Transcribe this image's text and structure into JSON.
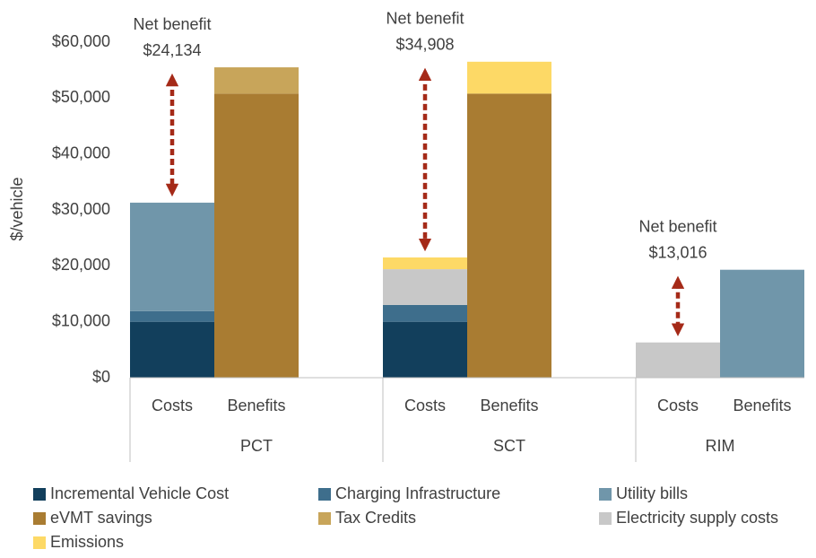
{
  "chart_data": {
    "type": "stacked_bar",
    "ylabel": "$/vehicle",
    "groups": [
      "PCT",
      "SCT",
      "RIM"
    ],
    "categories": [
      "Costs",
      "Benefits",
      "Costs",
      "Benefits",
      "Costs",
      "Benefits"
    ],
    "series": [
      {
        "name": "Incremental Vehicle Cost",
        "color": "#123f5c",
        "values": [
          10000,
          null,
          10000,
          null,
          null,
          null
        ]
      },
      {
        "name": "Charging Infrastructure",
        "color": "#3e6e8c",
        "values": [
          1900,
          null,
          3000,
          null,
          null,
          null
        ]
      },
      {
        "name": "Utility bills",
        "color": "#7096aa",
        "values": [
          19400,
          null,
          null,
          null,
          null,
          19300
        ]
      },
      {
        "name": "eVMT savings",
        "color": "#a97c32",
        "values": [
          null,
          50800,
          null,
          50800,
          null,
          null
        ]
      },
      {
        "name": "Tax Credits",
        "color": "#c8a55a",
        "values": [
          null,
          4700,
          null,
          null,
          null,
          null
        ]
      },
      {
        "name": "Electricity supply costs",
        "color": "#c8c8c8",
        "values": [
          null,
          null,
          6400,
          null,
          6300,
          null
        ]
      },
      {
        "name": "Emissions",
        "color": "#fdd966",
        "values": [
          null,
          null,
          2100,
          5700,
          null,
          null
        ]
      }
    ],
    "annotations": [
      {
        "text": "Net benefit",
        "value": 24134,
        "value_label": "$24,134"
      },
      {
        "text": "Net benefit",
        "value": 34908,
        "value_label": "$34,908"
      },
      {
        "text": "Net benefit",
        "value": 13016,
        "value_label": "$13,016"
      }
    ],
    "arrow_color": "#a52a18",
    "ylim": [
      0,
      60000
    ],
    "yticks": [
      {
        "value": 0,
        "label": "$0"
      },
      {
        "value": 10000,
        "label": "$10,000"
      },
      {
        "value": 20000,
        "label": "$20,000"
      },
      {
        "value": 30000,
        "label": "$30,000"
      },
      {
        "value": 40000,
        "label": "$40,000"
      },
      {
        "value": 50000,
        "label": "$50,000"
      },
      {
        "value": 60000,
        "label": "$60,000"
      }
    ],
    "grid": false
  }
}
